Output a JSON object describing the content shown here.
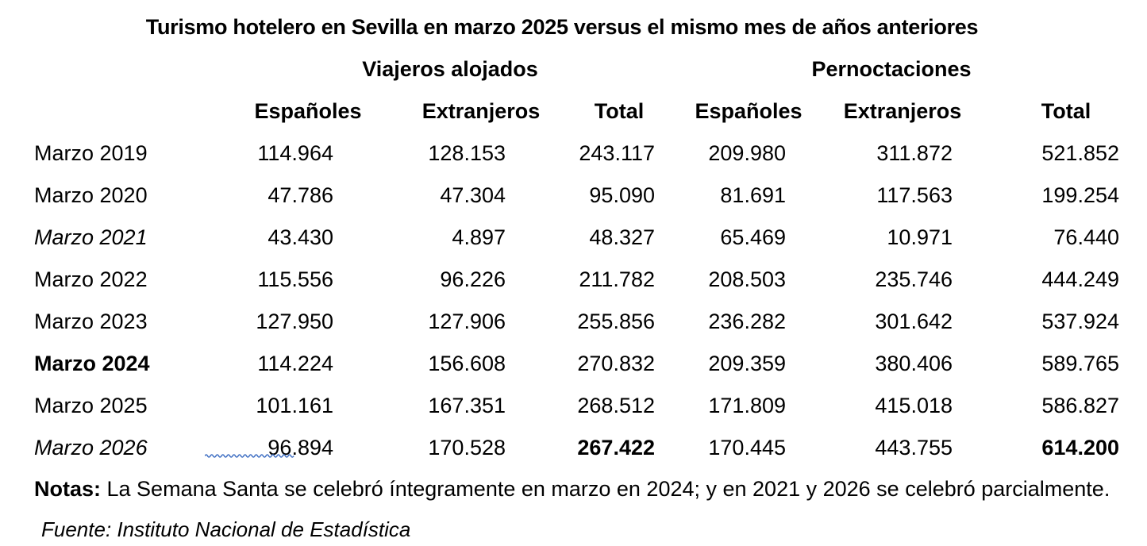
{
  "title": "Turismo hotelero en Sevilla en marzo 2025 versus el mismo mes de años anteriores",
  "table": {
    "group_headers": [
      "Viajeros alojados",
      "Pernoctaciones"
    ],
    "sub_headers": [
      "Españoles",
      "Extranjeros",
      "Total",
      "Españoles",
      "Extranjeros",
      "Total"
    ],
    "rows": [
      {
        "label": "Marzo 2019",
        "label_style": "normal",
        "values": [
          "114.964",
          "128.153",
          "243.117",
          "209.980",
          "311.872",
          "521.852"
        ],
        "bold_values": []
      },
      {
        "label": "Marzo 2020",
        "label_style": "normal",
        "values": [
          "47.786",
          "47.304",
          "95.090",
          "81.691",
          "117.563",
          "199.254"
        ],
        "bold_values": []
      },
      {
        "label": "Marzo 2021",
        "label_style": "italic",
        "values": [
          "43.430",
          "4.897",
          "48.327",
          "65.469",
          "10.971",
          "76.440"
        ],
        "bold_values": []
      },
      {
        "label": "Marzo 2022",
        "label_style": "normal",
        "values": [
          "115.556",
          "96.226",
          "211.782",
          "208.503",
          "235.746",
          "444.249"
        ],
        "bold_values": []
      },
      {
        "label": "Marzo 2023",
        "label_style": "normal",
        "values": [
          "127.950",
          "127.906",
          "255.856",
          "236.282",
          "301.642",
          "537.924"
        ],
        "bold_values": []
      },
      {
        "label": "Marzo 2024",
        "label_style": "bold",
        "values": [
          "114.224",
          "156.608",
          "270.832",
          "209.359",
          "380.406",
          "589.765"
        ],
        "bold_values": []
      },
      {
        "label": "Marzo 2025",
        "label_style": "normal",
        "values": [
          "101.161",
          "167.351",
          "268.512",
          "171.809",
          "415.018",
          "586.827"
        ],
        "bold_values": []
      },
      {
        "label": "Marzo 2026",
        "label_style": "italic",
        "values": [
          "96.894",
          "170.528",
          "267.422",
          "170.445",
          "443.755",
          "614.200"
        ],
        "bold_values": [
          2,
          5
        ],
        "squiggle_under_value": 0
      }
    ]
  },
  "notes": {
    "label": "Notas:",
    "text": " La Semana Santa se celebró íntegramente en marzo en 2024; y en 2021 y 2026 se celebró parcialmente."
  },
  "source": "Fuente: Instituto Nacional de Estadística",
  "colors": {
    "squiggle": "#4472C4",
    "text": "#000000",
    "background": "#FFFFFF"
  }
}
